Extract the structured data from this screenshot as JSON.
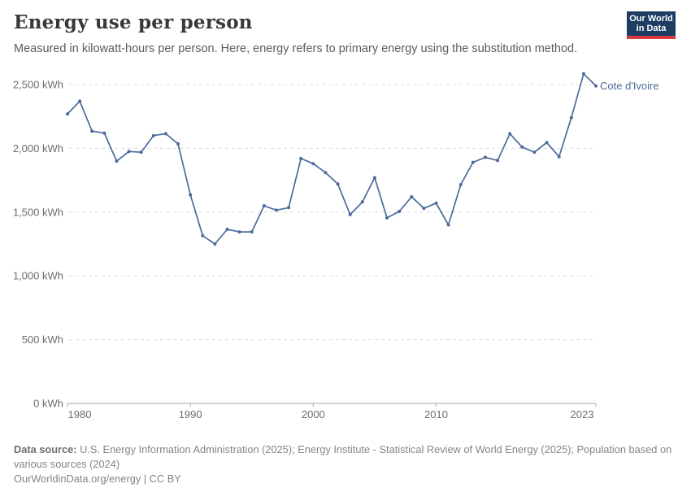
{
  "header": {
    "title": "Energy use per person",
    "subtitle": "Measured in kilowatt-hours per person. Here, energy refers to primary energy using the substitution method.",
    "logo": {
      "line1": "Our World",
      "line2": "in Data"
    }
  },
  "chart_data": {
    "type": "line",
    "title": "Energy use per person",
    "unit": "kWh",
    "xlabel": "",
    "ylabel": "",
    "xlim": [
      1980,
      2023
    ],
    "ylim": [
      0,
      2500
    ],
    "grid": "horizontal-dashed",
    "legend_position": "end-of-line-label",
    "x_ticks": [
      1980,
      1990,
      2000,
      2010,
      2023
    ],
    "y_ticks": [
      {
        "value": 0,
        "label": "0 kWh"
      },
      {
        "value": 500,
        "label": "500 kWh"
      },
      {
        "value": 1000,
        "label": "1,000 kWh"
      },
      {
        "value": 1500,
        "label": "1,500 kWh"
      },
      {
        "value": 2000,
        "label": "2,000 kWh"
      },
      {
        "value": 2500,
        "label": "2,500 kWh"
      }
    ],
    "series": [
      {
        "name": "Cote d'Ivoire",
        "color": "#4C6A9C",
        "x": [
          1980,
          1981,
          1982,
          1983,
          1984,
          1985,
          1986,
          1987,
          1988,
          1989,
          1990,
          1991,
          1992,
          1993,
          1994,
          1995,
          1996,
          1997,
          1998,
          1999,
          2000,
          2001,
          2002,
          2003,
          2004,
          2005,
          2006,
          2007,
          2008,
          2009,
          2010,
          2011,
          2012,
          2013,
          2014,
          2015,
          2016,
          2017,
          2018,
          2019,
          2020,
          2021,
          2022,
          2023
        ],
        "values": [
          2270,
          2370,
          2135,
          2120,
          1900,
          1975,
          1970,
          2100,
          2115,
          2035,
          1635,
          1315,
          1250,
          1365,
          1345,
          1345,
          1550,
          1515,
          1535,
          1920,
          1880,
          1810,
          1720,
          1480,
          1580,
          1770,
          1455,
          1505,
          1620,
          1530,
          1570,
          1400,
          1715,
          1890,
          1930,
          1905,
          2115,
          2010,
          1970,
          2045,
          1935,
          2240,
          2585,
          2490
        ]
      }
    ],
    "style": {
      "gridline_color": "#dcdcdc",
      "axis_color": "#a8a8a8",
      "tick_label_color": "#6e6e6e"
    }
  },
  "footer": {
    "datasource_label": "Data source:",
    "datasource_text": " U.S. Energy Information Administration (2025); Energy Institute - Statistical Review of World Energy (2025); Population based on various sources (2024)",
    "link_line": "OurWorldinData.org/energy | CC BY"
  }
}
